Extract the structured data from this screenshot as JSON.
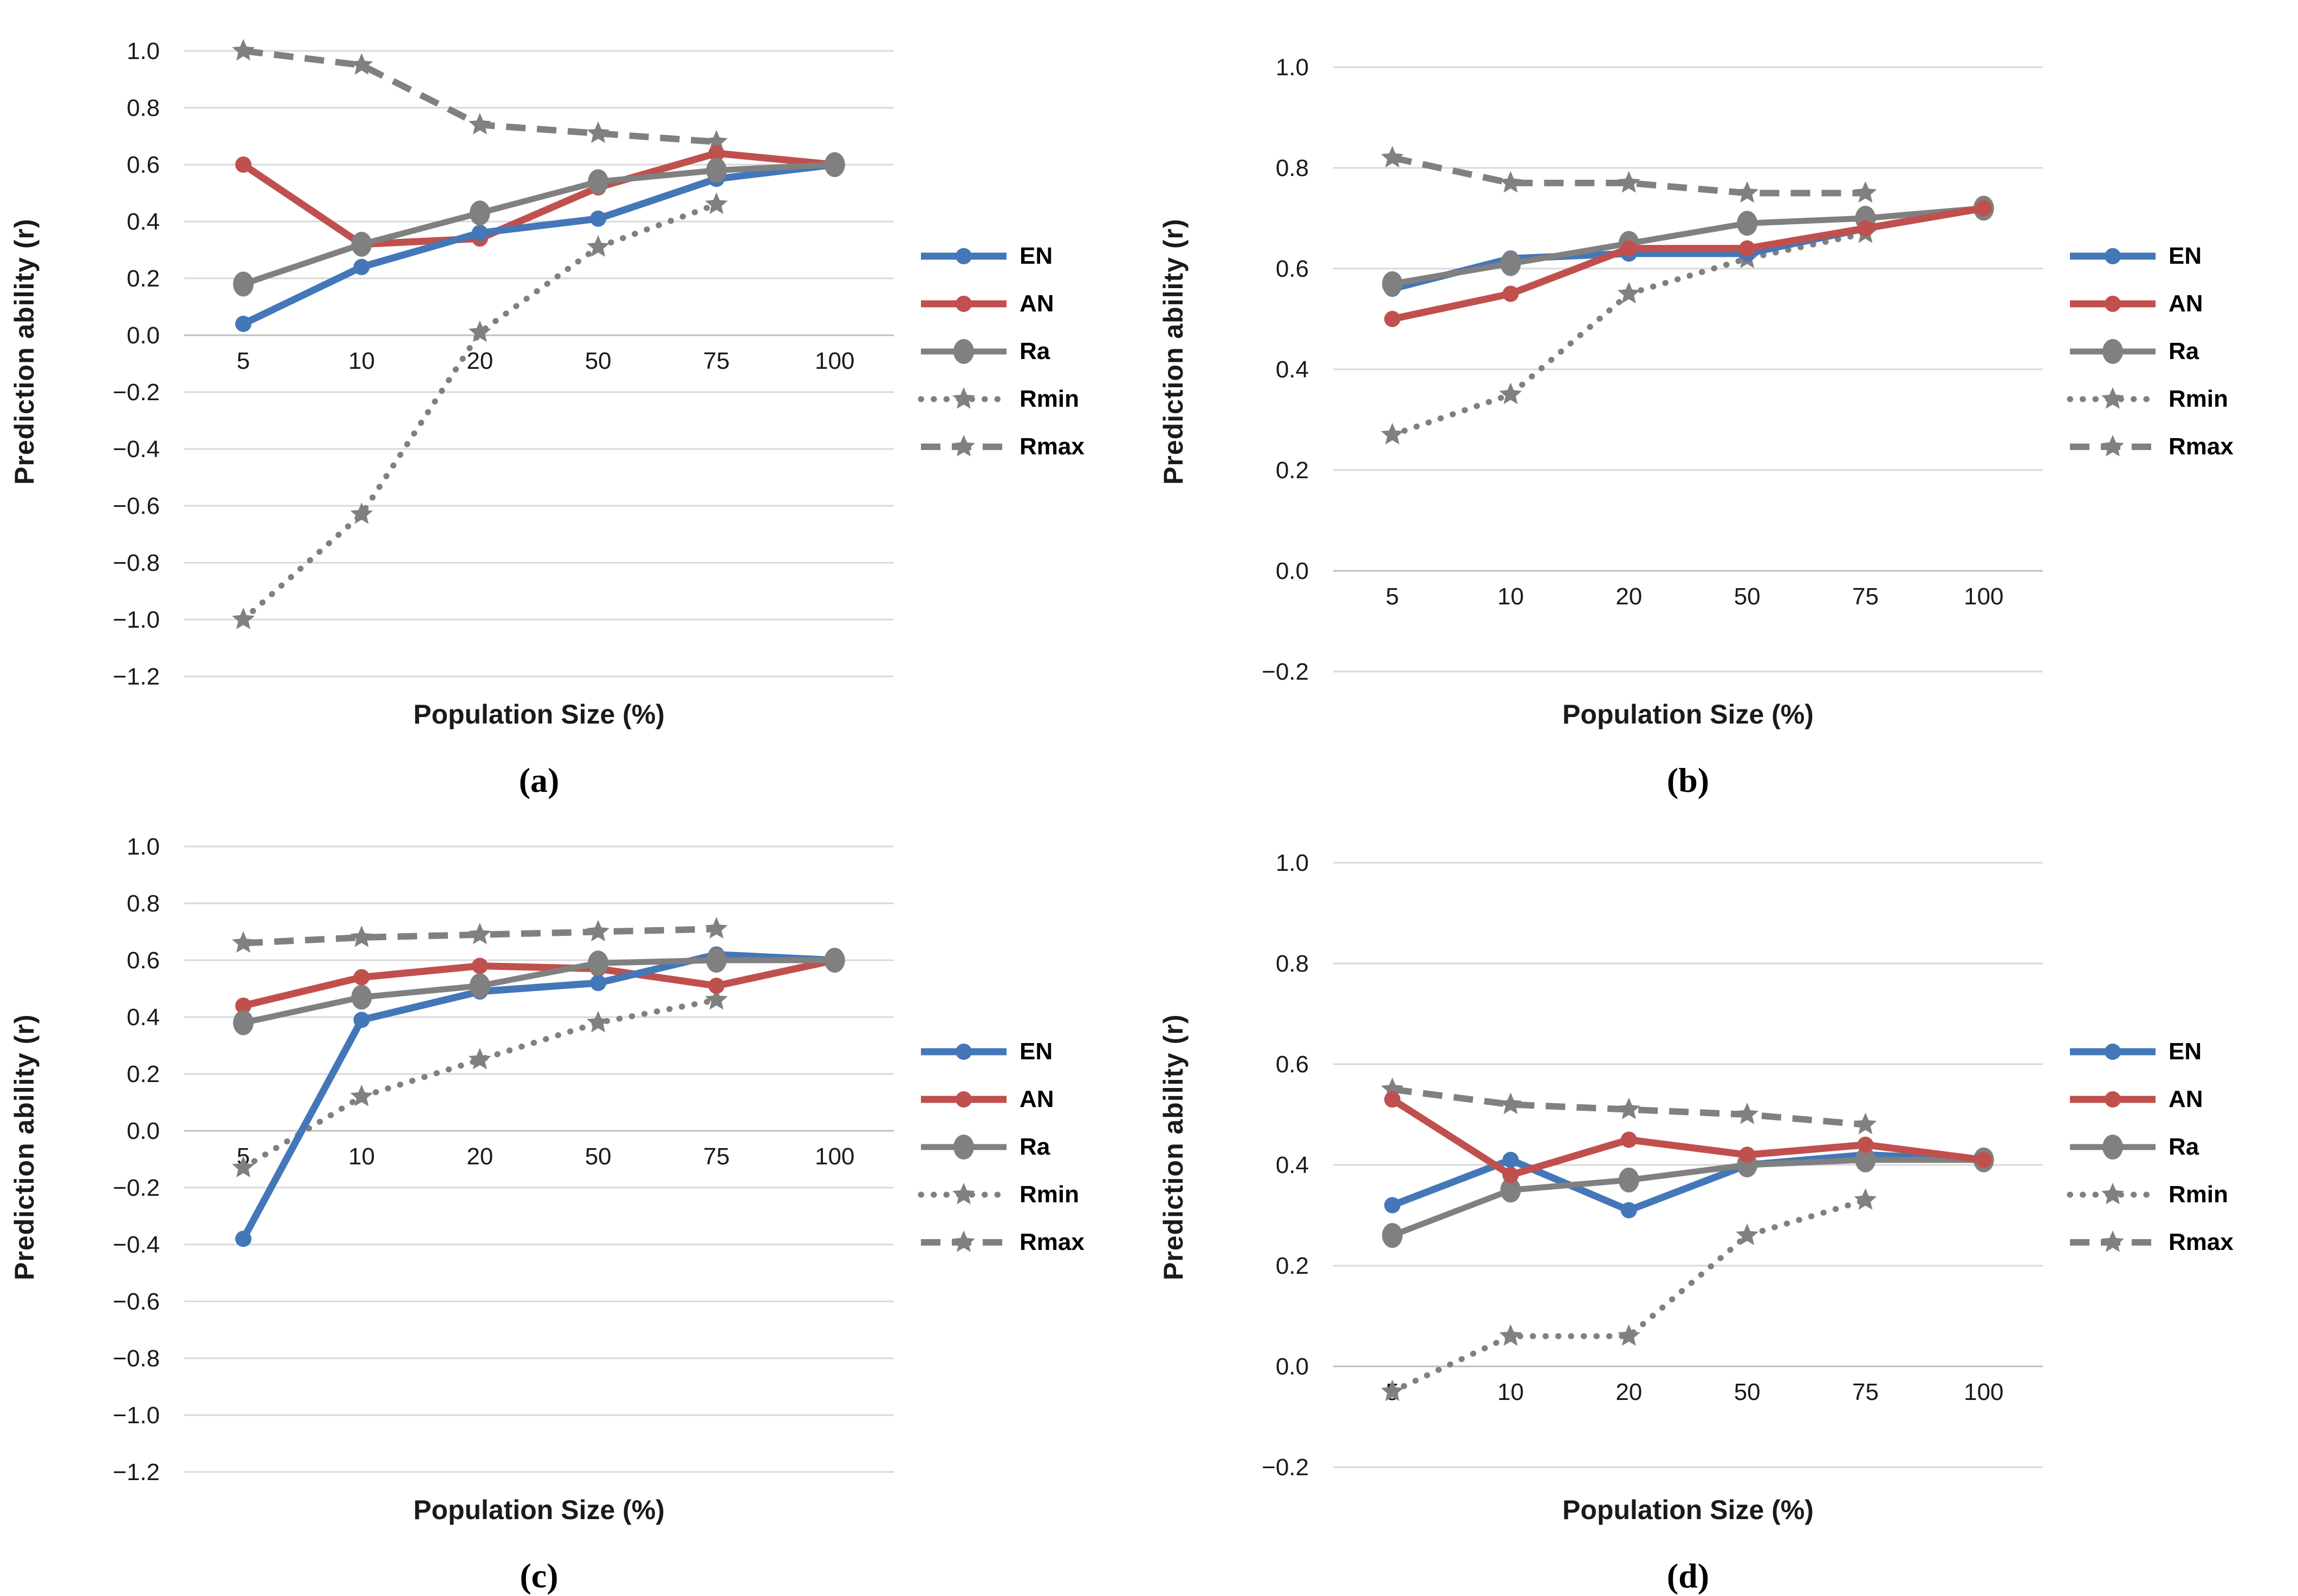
{
  "figure": {
    "y_axis_label": "Prediction ability (r)",
    "x_axis_label": "Population Size (%)",
    "background": "#ffffff",
    "gridline_color": "#d9d9d9",
    "zero_axis_color": "#bfbfbf",
    "text_color": "#1a1a1a",
    "legend_position": "right",
    "legend": [
      {
        "key": "EN",
        "label": "EN",
        "color": "#4377b8",
        "line": "solid",
        "marker": "circle",
        "width": 13
      },
      {
        "key": "AN",
        "label": "AN",
        "color": "#c0504d",
        "line": "solid",
        "marker": "circle",
        "width": 13
      },
      {
        "key": "Ra",
        "label": "Ra",
        "color": "#808080",
        "line": "solid",
        "marker": "big-circle",
        "width": 11
      },
      {
        "key": "Rmin",
        "label": "Rmin",
        "color": "#808080",
        "line": "dotted",
        "marker": "star",
        "width": 11
      },
      {
        "key": "Rmax",
        "label": "Rmax",
        "color": "#808080",
        "line": "dashed",
        "marker": "star",
        "width": 12
      }
    ]
  },
  "chart_data": [
    {
      "id": "a",
      "caption": "(a)",
      "type": "line",
      "grid": true,
      "xlabel": "Population Size (%)",
      "ylabel": "Prediction ability (r)",
      "categories": [
        "5",
        "10",
        "20",
        "50",
        "75",
        "100"
      ],
      "x": [
        5,
        10,
        20,
        50,
        75,
        100
      ],
      "ylim": [
        -1.2,
        1.0
      ],
      "ytick_labels": [
        "1.0",
        "0.8",
        "0.6",
        "0.4",
        "0.2",
        "0.0",
        "−0.2",
        "−0.4",
        "−0.6",
        "−0.8",
        "−1.0",
        "−1.2"
      ],
      "series": [
        {
          "name": "EN",
          "values": [
            0.04,
            0.24,
            0.36,
            0.41,
            0.55,
            0.6
          ]
        },
        {
          "name": "AN",
          "values": [
            0.6,
            0.32,
            0.34,
            0.52,
            0.64,
            0.6
          ]
        },
        {
          "name": "Ra",
          "values": [
            0.18,
            0.32,
            0.43,
            0.54,
            0.58,
            0.6
          ]
        },
        {
          "name": "Rmin",
          "values": [
            -1.0,
            -0.63,
            0.01,
            0.31,
            0.46,
            null
          ]
        },
        {
          "name": "Rmax",
          "values": [
            1.0,
            0.95,
            0.74,
            0.71,
            0.68,
            null
          ]
        }
      ],
      "z_order": [
        "Rmax",
        "Rmin",
        "AN",
        "EN",
        "Ra"
      ]
    },
    {
      "id": "b",
      "caption": "(b)",
      "type": "line",
      "grid": true,
      "xlabel": "Population Size (%)",
      "ylabel": "Prediction ability (r)",
      "categories": [
        "5",
        "10",
        "20",
        "50",
        "75",
        "100"
      ],
      "x": [
        5,
        10,
        20,
        50,
        75,
        100
      ],
      "ylim": [
        -0.2,
        1.0
      ],
      "ytick_labels": [
        "1.0",
        "0.8",
        "0.6",
        "0.4",
        "0.2",
        "0.0",
        "−0.2"
      ],
      "series": [
        {
          "name": "EN",
          "values": [
            0.56,
            0.62,
            0.63,
            0.63,
            0.68,
            0.72
          ]
        },
        {
          "name": "AN",
          "values": [
            0.5,
            0.55,
            0.64,
            0.64,
            0.68,
            0.72
          ]
        },
        {
          "name": "Ra",
          "values": [
            0.57,
            0.61,
            0.65,
            0.69,
            0.7,
            0.72
          ]
        },
        {
          "name": "Rmin",
          "values": [
            0.27,
            0.35,
            0.55,
            0.62,
            0.67,
            null
          ]
        },
        {
          "name": "Rmax",
          "values": [
            0.82,
            0.77,
            0.77,
            0.75,
            0.75,
            null
          ]
        }
      ],
      "z_order": [
        "Rmax",
        "Rmin",
        "EN",
        "Ra",
        "AN"
      ]
    },
    {
      "id": "c",
      "caption": "(c)",
      "type": "line",
      "grid": true,
      "xlabel": "Population Size (%)",
      "ylabel": "Prediction ability (r)",
      "categories": [
        "5",
        "10",
        "20",
        "50",
        "75",
        "100"
      ],
      "x": [
        5,
        10,
        20,
        50,
        75,
        100
      ],
      "ylim": [
        -1.2,
        1.0
      ],
      "ytick_labels": [
        "1.0",
        "0.8",
        "0.6",
        "0.4",
        "0.2",
        "0.0",
        "−0.2",
        "−0.4",
        "−0.6",
        "−0.8",
        "−1.0",
        "−1.2"
      ],
      "series": [
        {
          "name": "EN",
          "values": [
            -0.38,
            0.39,
            0.49,
            0.52,
            0.62,
            0.6
          ]
        },
        {
          "name": "AN",
          "values": [
            0.44,
            0.54,
            0.58,
            0.57,
            0.51,
            0.6
          ]
        },
        {
          "name": "Ra",
          "values": [
            0.38,
            0.47,
            0.51,
            0.59,
            0.6,
            0.6
          ]
        },
        {
          "name": "Rmin",
          "values": [
            -0.13,
            0.12,
            0.25,
            0.38,
            0.46,
            null
          ]
        },
        {
          "name": "Rmax",
          "values": [
            0.66,
            0.68,
            0.69,
            0.7,
            0.71,
            null
          ]
        }
      ],
      "z_order": [
        "Rmax",
        "Rmin",
        "AN",
        "EN",
        "Ra"
      ]
    },
    {
      "id": "d",
      "caption": "(d)",
      "type": "line",
      "grid": true,
      "xlabel": "Population Size (%)",
      "ylabel": "Prediction ability (r)",
      "categories": [
        "5",
        "10",
        "20",
        "50",
        "75",
        "100"
      ],
      "x": [
        5,
        10,
        20,
        50,
        75,
        100
      ],
      "ylim": [
        -0.2,
        1.0
      ],
      "ytick_labels": [
        "1.0",
        "0.8",
        "0.6",
        "0.4",
        "0.2",
        "0.0",
        "−0.2"
      ],
      "series": [
        {
          "name": "EN",
          "values": [
            0.32,
            0.41,
            0.31,
            0.4,
            0.42,
            0.41
          ]
        },
        {
          "name": "AN",
          "values": [
            0.53,
            0.38,
            0.45,
            0.42,
            0.44,
            0.41
          ]
        },
        {
          "name": "Ra",
          "values": [
            0.26,
            0.35,
            0.37,
            0.4,
            0.41,
            0.41
          ]
        },
        {
          "name": "Rmin",
          "values": [
            -0.05,
            0.06,
            0.06,
            0.26,
            0.33,
            null
          ]
        },
        {
          "name": "Rmax",
          "values": [
            0.55,
            0.52,
            0.51,
            0.5,
            0.48,
            null
          ]
        }
      ],
      "z_order": [
        "Rmax",
        "Rmin",
        "EN",
        "Ra",
        "AN"
      ]
    }
  ]
}
